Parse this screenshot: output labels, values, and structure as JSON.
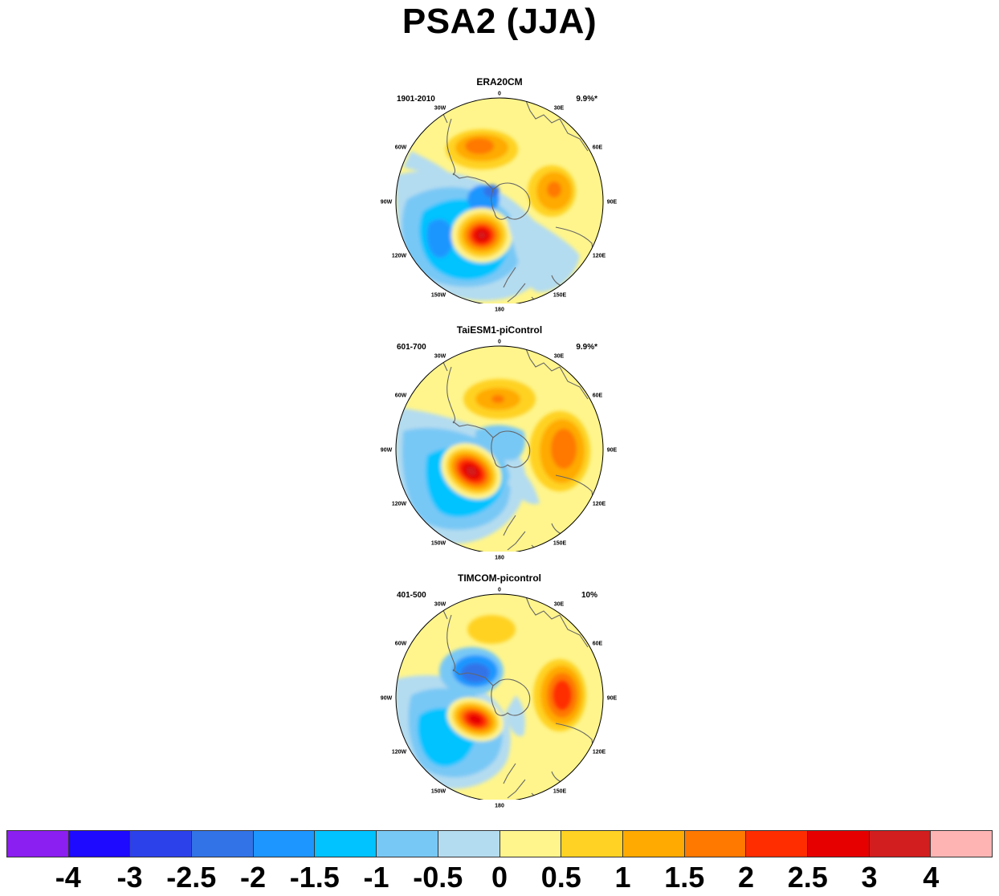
{
  "title": "PSA2 (JJA)",
  "panels": [
    {
      "title": "ERA20CM",
      "years": "1901-2010",
      "percent": "9.9%*"
    },
    {
      "title": "TaiESM1-piControl",
      "years": "601-700",
      "percent": "9.9%*"
    },
    {
      "title": "TIMCOM-picontrol",
      "years": "401-500",
      "percent": "10%"
    }
  ],
  "longitude_labels": [
    "0",
    "30E",
    "60E",
    "90E",
    "120E",
    "150E",
    "180",
    "150W",
    "120W",
    "90W",
    "60W",
    "30W"
  ],
  "colorbar": {
    "colors": [
      "#8b1ef0",
      "#1e0aff",
      "#2d41eb",
      "#3273e8",
      "#1e96ff",
      "#00c3ff",
      "#78c8f5",
      "#b4dcf0",
      "#fff58c",
      "#ffd223",
      "#ffaa00",
      "#ff7800",
      "#ff2d00",
      "#e60000",
      "#d21e1e",
      "#ffb4b4"
    ],
    "labels": [
      "-4",
      "-3",
      "-2.5",
      "-2",
      "-1.5",
      "-1",
      "-0.5",
      "0",
      "0.5",
      "1",
      "1.5",
      "2",
      "2.5",
      "3",
      "4"
    ]
  }
}
